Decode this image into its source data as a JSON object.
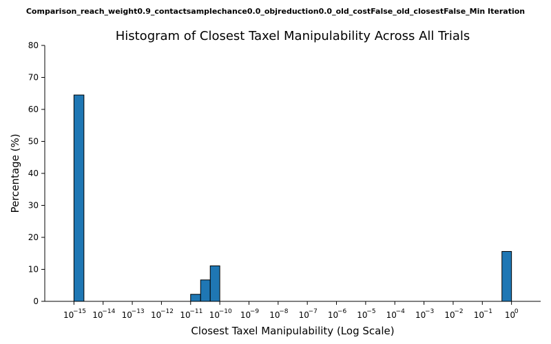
{
  "figure": {
    "suptitle": "Comparison_reach_weight0.9_contactsamplechance0.0_objreduction0.0_old_costFalse_old_closestFalse_Min Iteration"
  },
  "chart_data": {
    "type": "bar",
    "title": "Histogram of Closest Taxel Manipulability Across All Trials",
    "xlabel": "Closest Taxel Manipulability (Log Scale)",
    "ylabel": "Percentage (%)",
    "xscale": "log",
    "xlim": [
      1e-16,
      10
    ],
    "ylim": [
      0,
      80
    ],
    "yticks": [
      0,
      10,
      20,
      30,
      40,
      50,
      60,
      70,
      80
    ],
    "xtick_exponents": [
      "−15",
      "−14",
      "−13",
      "−12",
      "−11",
      "−10",
      "−9",
      "−8",
      "−7",
      "−6",
      "−5",
      "−4",
      "−3",
      "−2",
      "−1",
      "0"
    ],
    "bar_color": "#1f77b4",
    "grid": false,
    "bins": [
      {
        "x_low": 1e-15,
        "x_high": 2.2e-15,
        "value": 64.5
      },
      {
        "x_low": 1e-11,
        "x_high": 2.2e-11,
        "value": 2.2
      },
      {
        "x_low": 2.2e-11,
        "x_high": 4.7e-11,
        "value": 6.7
      },
      {
        "x_low": 4.7e-11,
        "x_high": 1e-10,
        "value": 11.1
      },
      {
        "x_low": 0.47,
        "x_high": 1.0,
        "value": 15.6
      }
    ]
  }
}
